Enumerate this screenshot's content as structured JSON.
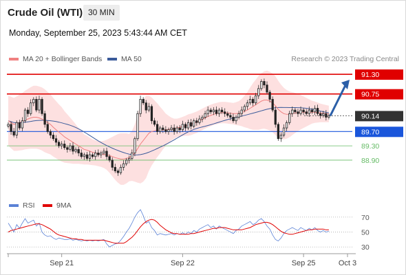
{
  "header": {
    "title": "Crude Oil (WTI)",
    "timeframe": "30 MIN",
    "datetime": "Monday, September 25, 2023 5:43:44 AM CET"
  },
  "legend": {
    "ma_bb": "MA 20 + Bollinger Bands",
    "ma50": "MA 50",
    "credit": "Research © 2023 Trading Central"
  },
  "rsi_legend": {
    "rsi": "RSI",
    "ma9": "9MA"
  },
  "colors": {
    "bb_fill": "#fde0e0",
    "ma20": "#f08080",
    "ma50": "#3a5a9a",
    "up": "#1a1a1a",
    "resistance": "#e00000",
    "support": "#1a56db",
    "target": "#66bb66",
    "arrow": "#2b5fa8",
    "rsi": "#5b82d6",
    "rsi_ma": "#e00000"
  },
  "chart_data": [
    {
      "type": "candlestick",
      "y_range": [
        87.9,
        91.55
      ],
      "x_range": [
        0,
        115
      ],
      "x_ticks": [
        {
          "label": "Sep 21",
          "x": 19
        },
        {
          "label": "Sep 22",
          "x": 62
        },
        {
          "label": "Sep 25",
          "x": 105
        },
        {
          "label": "Oct 3",
          "x": 121
        }
      ],
      "levels": [
        {
          "label": "91.30",
          "value": 91.3,
          "kind": "resistance"
        },
        {
          "label": "90.75",
          "value": 90.75,
          "kind": "resistance"
        },
        {
          "label": "90.14",
          "value": 90.14,
          "kind": "last"
        },
        {
          "label": "89.70",
          "value": 89.7,
          "kind": "support"
        },
        {
          "label": "89.30",
          "value": 89.3,
          "kind": "target"
        },
        {
          "label": "88.90",
          "value": 88.9,
          "kind": "target"
        }
      ],
      "close": [
        89.9,
        89.7,
        89.6,
        89.95,
        89.8,
        90.0,
        90.3,
        90.2,
        90.5,
        90.6,
        90.3,
        90.6,
        90.2,
        89.9,
        89.7,
        89.6,
        89.5,
        89.4,
        89.3,
        89.35,
        89.25,
        89.2,
        89.3,
        89.15,
        89.2,
        89.1,
        89.0,
        89.05,
        88.95,
        89.05,
        89.0,
        89.1,
        89.05,
        89.1,
        89.15,
        89.0,
        88.9,
        88.7,
        88.6,
        88.55,
        88.7,
        88.8,
        88.9,
        88.95,
        89.1,
        89.5,
        90.2,
        90.6,
        90.5,
        90.3,
        90.4,
        90.0,
        89.9,
        89.7,
        89.8,
        89.75,
        89.7,
        89.75,
        89.8,
        89.7,
        89.8,
        89.75,
        89.9,
        89.8,
        89.95,
        89.85,
        90.0,
        89.95,
        90.05,
        90.1,
        90.2,
        90.3,
        90.25,
        90.3,
        90.2,
        90.3,
        90.25,
        90.2,
        90.15,
        90.1,
        90.0,
        90.1,
        90.2,
        90.3,
        90.4,
        90.5,
        90.6,
        90.5,
        90.7,
        90.9,
        91.1,
        91.0,
        90.8,
        90.6,
        90.3,
        89.9,
        89.5,
        89.6,
        89.8,
        89.95,
        90.2,
        90.3,
        90.25,
        90.2,
        90.3,
        90.25,
        90.2,
        90.3,
        90.25,
        90.35,
        90.2,
        90.15,
        90.2,
        90.1,
        90.14
      ],
      "ma20": [
        90.0,
        89.95,
        89.9,
        89.92,
        89.95,
        89.98,
        90.02,
        90.05,
        90.08,
        90.1,
        90.1,
        90.08,
        90.05,
        90.0,
        89.95,
        89.9,
        89.82,
        89.75,
        89.68,
        89.62,
        89.55,
        89.5,
        89.45,
        89.4,
        89.35,
        89.3,
        89.25,
        89.2,
        89.18,
        89.15,
        89.12,
        89.1,
        89.08,
        89.07,
        89.06,
        89.05,
        89.03,
        89.0,
        88.97,
        88.95,
        88.93,
        88.93,
        88.95,
        88.97,
        89.02,
        89.1,
        89.22,
        89.35,
        89.45,
        89.55,
        89.65,
        89.7,
        89.72,
        89.74,
        89.74,
        89.75,
        89.75,
        89.76,
        89.77,
        89.78,
        89.8,
        89.82,
        89.84,
        89.86,
        89.88,
        89.9,
        89.93,
        89.96,
        90.0,
        90.04,
        90.08,
        90.12,
        90.15,
        90.18,
        90.2,
        90.22,
        90.23,
        90.23,
        90.22,
        90.21,
        90.2,
        90.2,
        90.21,
        90.23,
        90.26,
        90.3,
        90.35,
        90.4,
        90.45,
        90.5,
        90.55,
        90.58,
        90.58,
        90.55,
        90.5,
        90.42,
        90.32,
        90.25,
        90.2,
        90.18,
        90.18,
        90.2,
        90.22,
        90.23,
        90.24,
        90.24,
        90.24,
        90.24,
        90.24,
        90.24,
        90.23,
        90.22,
        90.21,
        90.2,
        90.19
      ],
      "bb_width": [
        0.7,
        0.72,
        0.74,
        0.76,
        0.78,
        0.8,
        0.82,
        0.84,
        0.86,
        0.88,
        0.88,
        0.88,
        0.88,
        0.88,
        0.86,
        0.84,
        0.82,
        0.8,
        0.78,
        0.76,
        0.72,
        0.68,
        0.64,
        0.6,
        0.55,
        0.5,
        0.46,
        0.42,
        0.4,
        0.38,
        0.36,
        0.35,
        0.35,
        0.36,
        0.38,
        0.42,
        0.48,
        0.55,
        0.62,
        0.68,
        0.72,
        0.72,
        0.7,
        0.66,
        0.7,
        0.8,
        0.95,
        1.1,
        1.15,
        1.15,
        1.05,
        0.95,
        0.85,
        0.75,
        0.65,
        0.55,
        0.45,
        0.38,
        0.32,
        0.28,
        0.26,
        0.26,
        0.27,
        0.28,
        0.3,
        0.3,
        0.3,
        0.3,
        0.3,
        0.3,
        0.3,
        0.3,
        0.3,
        0.3,
        0.3,
        0.3,
        0.3,
        0.3,
        0.3,
        0.3,
        0.3,
        0.32,
        0.34,
        0.38,
        0.44,
        0.5,
        0.58,
        0.65,
        0.7,
        0.75,
        0.78,
        0.8,
        0.82,
        0.82,
        0.82,
        0.82,
        0.8,
        0.76,
        0.72,
        0.68,
        0.64,
        0.6,
        0.56,
        0.52,
        0.48,
        0.44,
        0.4,
        0.36,
        0.32,
        0.3,
        0.28,
        0.26,
        0.25,
        0.24,
        0.23
      ]
    },
    {
      "type": "line",
      "name": "RSI",
      "y_range": [
        20,
        80
      ],
      "y_ticks": [
        70,
        50,
        30
      ],
      "rsi": [
        62,
        56,
        50,
        60,
        55,
        62,
        68,
        62,
        64,
        66,
        58,
        62,
        50,
        46,
        44,
        45,
        42,
        40,
        42,
        41,
        40,
        40,
        41,
        39,
        40,
        39,
        38,
        39,
        38,
        39,
        38,
        39,
        38,
        39,
        40,
        34,
        30,
        32,
        34,
        35,
        39,
        44,
        50,
        55,
        62,
        70,
        76,
        80,
        72,
        62,
        64,
        56,
        52,
        46,
        48,
        47,
        46,
        47,
        48,
        46,
        48,
        47,
        49,
        47,
        50,
        48,
        52,
        50,
        54,
        56,
        58,
        60,
        56,
        58,
        54,
        58,
        56,
        54,
        52,
        50,
        48,
        52,
        54,
        58,
        60,
        62,
        64,
        60,
        62,
        66,
        68,
        64,
        58,
        54,
        46,
        40,
        38,
        42,
        48,
        52,
        54,
        56,
        54,
        52,
        56,
        54,
        52,
        55,
        53,
        56,
        52,
        50,
        52,
        50,
        51
      ],
      "ma9": [
        50,
        52,
        53,
        54,
        55,
        56,
        57,
        58,
        59,
        60,
        61,
        61,
        60,
        58,
        56,
        54,
        51,
        48,
        46,
        45,
        44,
        43,
        42,
        41,
        41,
        40,
        40,
        39,
        39,
        39,
        39,
        39,
        39,
        39,
        39,
        38,
        37,
        36,
        35,
        35,
        35,
        35,
        37,
        40,
        43,
        47,
        52,
        57,
        61,
        64,
        66,
        67,
        66,
        63,
        59,
        56,
        53,
        51,
        49,
        48,
        48,
        47,
        47,
        47,
        47,
        48,
        48,
        49,
        50,
        51,
        52,
        53,
        54,
        55,
        55,
        56,
        56,
        56,
        55,
        54,
        53,
        53,
        53,
        53,
        54,
        55,
        56,
        58,
        60,
        61,
        62,
        63,
        63,
        62,
        60,
        57,
        54,
        51,
        49,
        48,
        47,
        47,
        48,
        49,
        50,
        51,
        52,
        53,
        53,
        54,
        54,
        54,
        54,
        53,
        53
      ]
    }
  ]
}
